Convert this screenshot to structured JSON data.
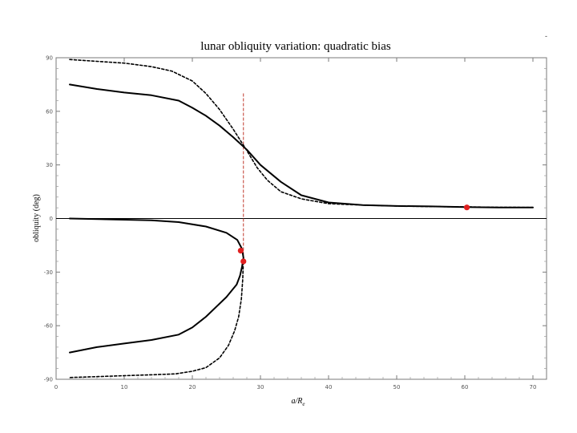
{
  "chart_data": {
    "type": "line",
    "title": "lunar obliquity variation: quadratic bias",
    "xlabel_main": "a/R",
    "xlabel_sub": "e",
    "ylabel": "obliquity (deg)",
    "xlim": [
      0,
      72
    ],
    "ylim": [
      -90,
      90
    ],
    "x_ticks": [
      "0",
      "10",
      "20",
      "30",
      "40",
      "50",
      "60",
      "70"
    ],
    "x_tick_values": [
      0,
      10,
      20,
      30,
      40,
      50,
      60,
      70
    ],
    "y_ticks": [
      "90",
      "60",
      "30",
      "0",
      "-30",
      "-60",
      "-90"
    ],
    "y_tick_values": [
      90,
      60,
      30,
      0,
      -30,
      -60,
      -90
    ],
    "zero_line": true,
    "series": [
      {
        "style": "solid",
        "x": [
          2,
          6,
          10,
          14,
          18,
          20,
          22,
          24,
          26,
          28,
          30,
          33,
          36,
          40,
          45,
          50,
          55,
          60,
          65,
          70
        ],
        "y": [
          75,
          72.5,
          70.5,
          69,
          66,
          62,
          57.5,
          52,
          45.5,
          38.5,
          30,
          20.5,
          13,
          9,
          7.5,
          7,
          6.8,
          6.4,
          6.2,
          6.2
        ]
      },
      {
        "style": "dashed",
        "x": [
          2,
          6,
          10,
          14,
          17,
          20,
          22,
          24,
          26,
          28,
          29.5,
          31,
          33,
          36,
          40,
          45,
          50,
          55,
          60,
          65,
          70
        ],
        "y": [
          89,
          88,
          87,
          85,
          82.5,
          77,
          70,
          61,
          50,
          38,
          28.5,
          21.5,
          15,
          11,
          8.3,
          7.5,
          7,
          6.7,
          6.5,
          6.3,
          6.2
        ]
      },
      {
        "style": "solid",
        "x": [
          2,
          8,
          14,
          18,
          22,
          25,
          26.6,
          27.3,
          27.5,
          27.3,
          27,
          26.5,
          25,
          22,
          20,
          18,
          14,
          10,
          6,
          2
        ],
        "y": [
          0,
          -0.5,
          -1,
          -2,
          -4.5,
          -8,
          -12,
          -17,
          -22,
          -27,
          -32,
          -37,
          -44,
          -55,
          -61,
          -65,
          -68,
          -70,
          -72,
          -75
        ]
      },
      {
        "style": "dashed",
        "x": [
          27.5,
          27.4,
          27.2,
          26.8,
          26.2,
          25.3,
          24,
          22,
          20,
          17.5,
          14,
          10,
          6,
          2
        ],
        "y": [
          -22,
          -34,
          -45,
          -55,
          -63,
          -71,
          -78,
          -83.5,
          -85.5,
          -87,
          -87.5,
          -88,
          -88.5,
          -89
        ]
      }
    ],
    "points": [
      {
        "x": 60.3,
        "y": 6.2
      },
      {
        "x": 27.1,
        "y": -18
      },
      {
        "x": 27.5,
        "y": -24
      }
    ],
    "vertical_marker": {
      "x": 27.5,
      "y_from": -24,
      "y_to": 70
    }
  },
  "colors": {
    "series": "#000000",
    "marker": "#e02020",
    "vertical_marker": "#c0392b",
    "frame": "#7a7a7a"
  },
  "corner_mark": "-"
}
